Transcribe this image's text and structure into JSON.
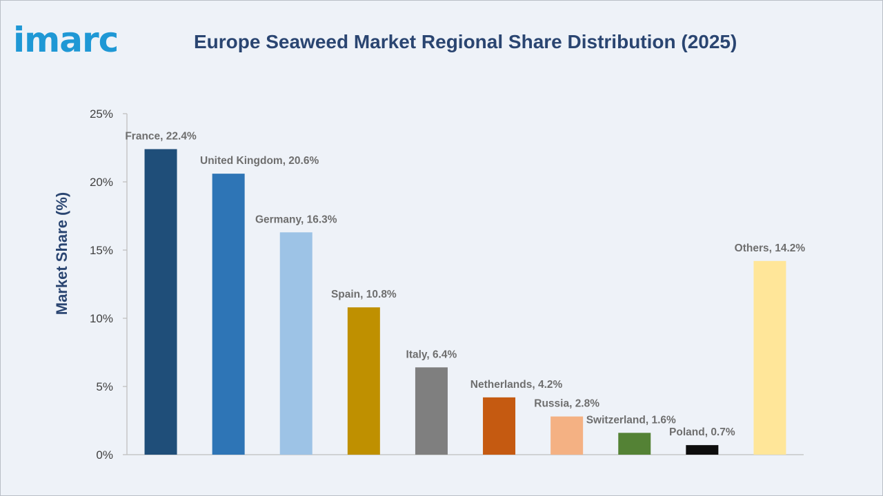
{
  "brand": {
    "logo_text": "imarc"
  },
  "chart_data": {
    "type": "bar",
    "title": "Europe Seaweed Market Regional Share Distribution (2025)",
    "xlabel": "",
    "ylabel": "Market Share (%)",
    "ylim": [
      0,
      25
    ],
    "yticks": [
      "0%",
      "5%",
      "10%",
      "15%",
      "20%",
      "25%"
    ],
    "grid": false,
    "categories": [
      "France",
      "United Kingdom",
      "Germany",
      "Spain",
      "Italy",
      "Netherlands",
      "Russia",
      "Switzerland",
      "Poland",
      "Others"
    ],
    "values": [
      22.4,
      20.6,
      16.3,
      10.8,
      6.4,
      4.2,
      2.8,
      1.6,
      0.7,
      14.2
    ],
    "data_labels": [
      "France, 22.4%",
      "United Kingdom, 20.6%",
      "Germany, 16.3%",
      "Spain, 10.8%",
      "Italy, 6.4%",
      "Netherlands, 4.2%",
      "Russia, 2.8%",
      "Switzerland, 1.6%",
      "Poland, 0.7%",
      "Others, 14.2%"
    ],
    "colors": [
      "#1f4e79",
      "#2e75b6",
      "#9dc3e6",
      "#bf9000",
      "#7f7f7f",
      "#c55a11",
      "#f4b183",
      "#548235",
      "#0d0d0d",
      "#ffe699"
    ]
  }
}
